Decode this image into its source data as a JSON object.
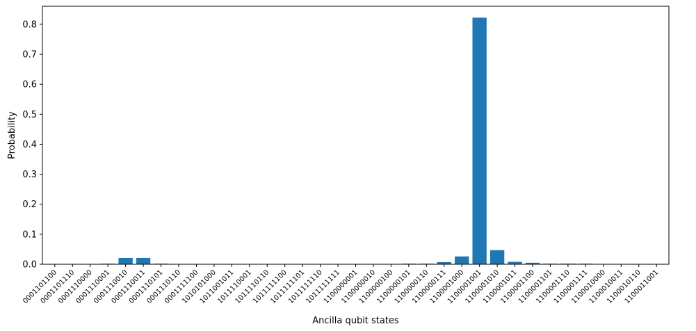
{
  "chart_data": {
    "type": "bar",
    "xlabel": "Ancilla qubit states",
    "ylabel": "Probability",
    "ylim": [
      0,
      0.86
    ],
    "yticks": [
      0.0,
      0.1,
      0.2,
      0.3,
      0.4,
      0.5,
      0.6,
      0.7,
      0.8
    ],
    "ytick_labels": [
      "0.0",
      "0.1",
      "0.2",
      "0.3",
      "0.4",
      "0.5",
      "0.6",
      "0.7",
      "0.8"
    ],
    "grid": false,
    "bar_color": "#1f77b4",
    "categories": [
      "0001101100",
      "0001101110",
      "0001110000",
      "0001110001",
      "0001110010",
      "0001110011",
      "0001110101",
      "0001110110",
      "0001111100",
      "1010101000",
      "1011001011",
      "1011110001",
      "1011110110",
      "1011111100",
      "1011111101",
      "1011111110",
      "1011111111",
      "1100000001",
      "1100000010",
      "1100000100",
      "1100000101",
      "1100000110",
      "1100000111",
      "1100001000",
      "1100001001",
      "1100001010",
      "1100001011",
      "1100001100",
      "1100001101",
      "1100001110",
      "1100001111",
      "1100010000",
      "1100010011",
      "1100010110",
      "1100011001"
    ],
    "values": [
      0.0005,
      0.0005,
      0.0005,
      0.002,
      0.021,
      0.021,
      0.002,
      0.0005,
      0.0005,
      0.0005,
      0.0005,
      0.0005,
      0.0005,
      0.0005,
      0.0005,
      0.0005,
      0.0005,
      0.0005,
      0.0005,
      0.001,
      0.002,
      0.002,
      0.007,
      0.026,
      0.822,
      0.047,
      0.008,
      0.005,
      0.002,
      0.002,
      0.002,
      0.0005,
      0.0005,
      0.0005,
      0.0005
    ]
  }
}
